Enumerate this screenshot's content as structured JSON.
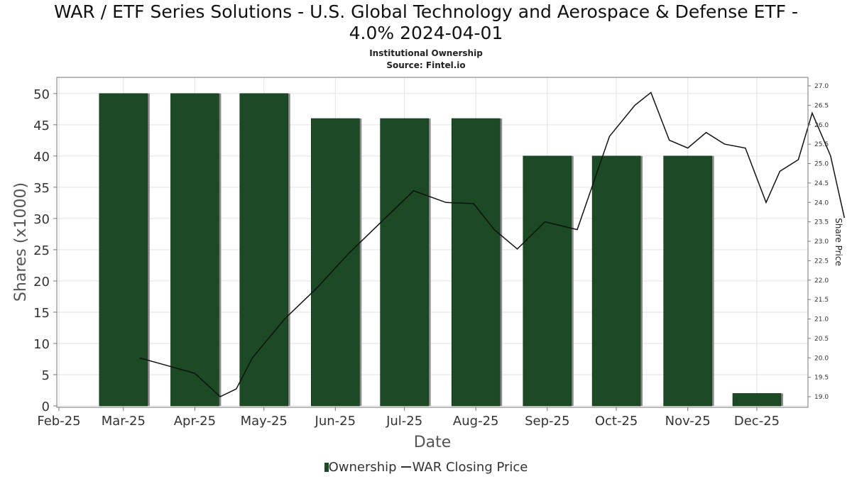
{
  "title_line1": "WAR / ETF Series Solutions - U.S. Global Technology and Aerospace & Defense ETF -",
  "title_line2": "4.0% 2024-04-01",
  "subtitle_line1": "Institutional Ownership",
  "subtitle_line2": "Source: Fintel.io",
  "legend": {
    "ownership": "Ownership",
    "price": "WAR Closing Price"
  },
  "chart_data": {
    "type": "bar",
    "xlabel": "Date",
    "ylabel": "Shares (x1000)",
    "y2label": "Share Price",
    "ylim": [
      0,
      52
    ],
    "y2lim": [
      18.75,
      27.15
    ],
    "y_ticks": [
      0,
      5,
      10,
      15,
      20,
      25,
      30,
      35,
      40,
      45,
      50
    ],
    "y2_ticks": [
      "19.0",
      "19.5",
      "20.0",
      "20.5",
      "21.0",
      "21.5",
      "22.0",
      "22.5",
      "23.0",
      "23.5",
      "24.0",
      "24.5",
      "25.0",
      "25.5",
      "26.0",
      "26.5",
      "27.0"
    ],
    "x_ticks": [
      "Feb-25",
      "Mar-25",
      "Apr-25",
      "May-25",
      "Jun-25",
      "Jul-25",
      "Aug-25",
      "Sep-25",
      "Oct-25",
      "Nov-25",
      "Dec-25"
    ],
    "grid": true,
    "legend_position": "bottom",
    "series": [
      {
        "name": "Ownership",
        "color": "#1c4a24",
        "type": "bar",
        "points": [
          {
            "date": "2025-03-01",
            "value": 50
          },
          {
            "date": "2025-04-01",
            "value": 50
          },
          {
            "date": "2025-05-01",
            "value": 50
          },
          {
            "date": "2025-06-01",
            "value": 46
          },
          {
            "date": "2025-07-01",
            "value": 46
          },
          {
            "date": "2025-08-01",
            "value": 46
          },
          {
            "date": "2025-09-01",
            "value": 40
          },
          {
            "date": "2025-10-01",
            "value": 40
          },
          {
            "date": "2025-11-01",
            "value": 40
          },
          {
            "date": "2025-12-01",
            "value": 2
          }
        ]
      },
      {
        "name": "WAR Closing Price",
        "color": "#111111",
        "type": "line",
        "axis": "right",
        "points": [
          {
            "date": "2025-03-08",
            "value": 20.0
          },
          {
            "date": "2025-03-20",
            "value": 19.8
          },
          {
            "date": "2025-04-01",
            "value": 19.6
          },
          {
            "date": "2025-04-12",
            "value": 19.0
          },
          {
            "date": "2025-04-19",
            "value": 19.2
          },
          {
            "date": "2025-04-26",
            "value": 20.0
          },
          {
            "date": "2025-05-10",
            "value": 21.0
          },
          {
            "date": "2025-05-24",
            "value": 21.8
          },
          {
            "date": "2025-06-07",
            "value": 22.7
          },
          {
            "date": "2025-06-21",
            "value": 23.5
          },
          {
            "date": "2025-07-05",
            "value": 24.3
          },
          {
            "date": "2025-07-19",
            "value": 24.0
          },
          {
            "date": "2025-07-31",
            "value": 23.97
          },
          {
            "date": "2025-08-09",
            "value": 23.3
          },
          {
            "date": "2025-08-19",
            "value": 22.8
          },
          {
            "date": "2025-08-31",
            "value": 23.5
          },
          {
            "date": "2025-09-14",
            "value": 23.3
          },
          {
            "date": "2025-09-28",
            "value": 25.7
          },
          {
            "date": "2025-10-09",
            "value": 26.5
          },
          {
            "date": "2025-10-16",
            "value": 26.83
          },
          {
            "date": "2025-10-24",
            "value": 25.6
          },
          {
            "date": "2025-11-01",
            "value": 25.4
          },
          {
            "date": "2025-11-09",
            "value": 25.8
          },
          {
            "date": "2025-11-17",
            "value": 25.5
          },
          {
            "date": "2025-11-26",
            "value": 25.4
          },
          {
            "date": "2025-12-05",
            "value": 24.0
          },
          {
            "date": "2025-12-11",
            "value": 24.8
          },
          {
            "date": "2025-12-19",
            "value": 25.1
          },
          {
            "date": "2025-12-25",
            "value": 26.3
          },
          {
            "date": "2026-01-02",
            "value": 25.2
          },
          {
            "date": "2026-01-08",
            "value": 23.6
          }
        ]
      }
    ]
  }
}
